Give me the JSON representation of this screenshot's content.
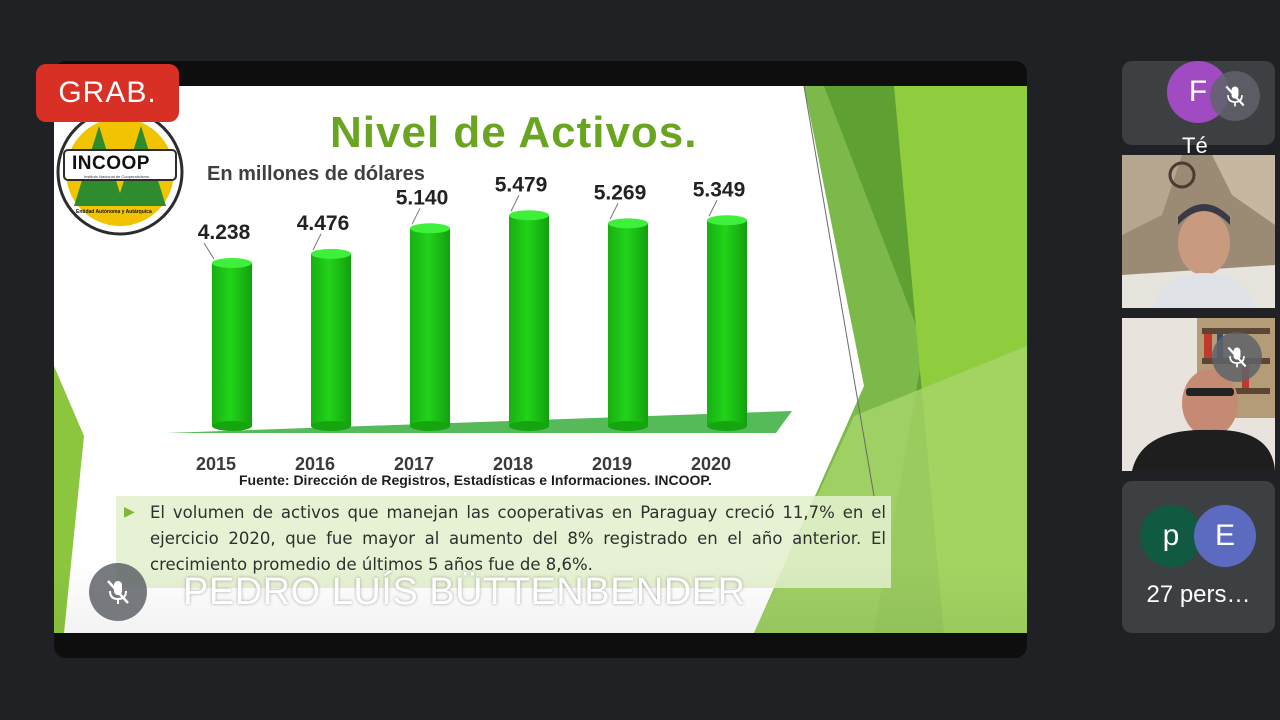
{
  "meeting": {
    "recording_badge": "GRAB.",
    "presenter_name": "PEDRO LUÍS BÜTTENBENDER"
  },
  "slide": {
    "logo_text": "INCOOP",
    "logo_subtext": "Instituto Nacional de Cooperativismo",
    "logo_footer": "Entidad Autónoma y Autárquica",
    "title": "Nivel de Activos.",
    "subtitle": "En millones de dólares",
    "source": "Fuente: Dirección de Registros, Estadísticas e Informaciones. INCOOP.",
    "note": "El volumen de activos que manejan las cooperativas en Paraguay creció 11,7% en el ejercicio 2020, que fue mayor al aumento del 8% registrado en el año anterior. El crecimiento promedio de últimos 5 años fue de 8,6%."
  },
  "chart_data": {
    "type": "bar",
    "title": "Nivel de Activos.",
    "ylabel": "",
    "categories": [
      "2015",
      "2016",
      "2017",
      "2018",
      "2019",
      "2020"
    ],
    "values": [
      4238,
      4476,
      5140,
      5479,
      5269,
      5349
    ],
    "data_labels": [
      "4.238",
      "4.476",
      "5.140",
      "5.479",
      "5.269",
      "5.349"
    ],
    "bar_color": "#22d31a",
    "floor_color": "#56b95a"
  },
  "participants": [
    {
      "initial": "F",
      "name_fragment": "Té",
      "avatar_color": "#a04bc2",
      "muted": true
    },
    {
      "type": "video",
      "muted": false
    },
    {
      "type": "video",
      "muted": true
    },
    {
      "initials": [
        "p",
        "E"
      ],
      "avatar_colors": [
        "#0f5a40",
        "#5c6bc0"
      ],
      "others_label": "27 pers…"
    }
  ],
  "colors": {
    "background": "#202124",
    "recording": "#d93025",
    "title_green": "#6aa521"
  }
}
